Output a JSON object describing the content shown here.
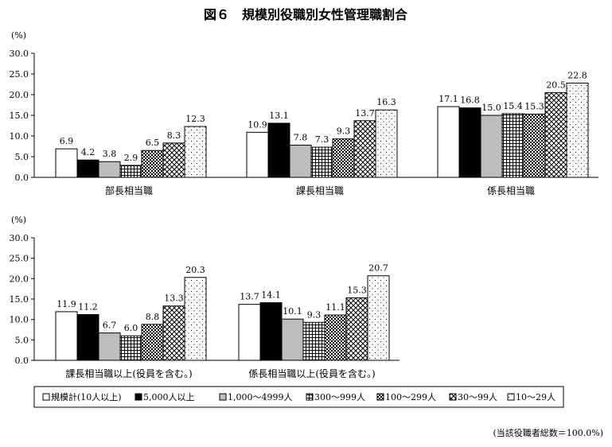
{
  "title": "図６　規模別役職別女性管理職割合",
  "unit_label": "(%)",
  "note": "(当該役職者総数＝100.0%)",
  "colors": {
    "s0": "#ffffff",
    "s1": "#000000",
    "s2": "#bdbdbd",
    "s3_pattern": "grid-fine",
    "s4_pattern": "check-dense",
    "s5_pattern": "diamond",
    "s6_pattern": "dots"
  },
  "chart_data": {
    "type": "bar",
    "ylim": [
      0,
      30
    ],
    "yticks": [
      "0.0",
      "5.0",
      "10.0",
      "15.0",
      "20.0",
      "25.0",
      "30.0"
    ],
    "legend": [
      "規模計(10人以上)",
      "5,000人以上",
      "1,000～4999人",
      "300～999人",
      "100～299人",
      "30～99人",
      "10～29人"
    ],
    "groups": [
      {
        "name": "部長相当職",
        "values": [
          6.9,
          4.2,
          3.8,
          2.9,
          6.5,
          8.3,
          12.3
        ],
        "labels": [
          "6.9",
          "4.2",
          "3.8",
          "2.9",
          "6.5",
          "8.3",
          "12.3"
        ]
      },
      {
        "name": "課長相当職",
        "values": [
          10.9,
          13.1,
          7.8,
          7.3,
          9.3,
          13.7,
          16.3
        ],
        "labels": [
          "10.9",
          "13.1",
          "7.8",
          "7.3",
          "9.3",
          "13.7",
          "16.3"
        ]
      },
      {
        "name": "係長相当職",
        "values": [
          17.1,
          16.8,
          15.0,
          15.4,
          15.3,
          20.5,
          22.8
        ],
        "labels": [
          "17.1",
          "16.8",
          "15.0",
          "15.4",
          "15.3",
          "20.5",
          "22.8"
        ]
      },
      {
        "name": "課長相当職以上(役員を含む。)",
        "values": [
          11.9,
          11.2,
          6.7,
          6.0,
          8.8,
          13.3,
          20.3
        ],
        "labels": [
          "11.9",
          "11.2",
          "6.7",
          "6.0",
          "8.8",
          "13.3",
          "20.3"
        ]
      },
      {
        "name": "係長相当職以上(役員を含む。)",
        "values": [
          13.7,
          14.1,
          10.1,
          9.3,
          11.1,
          15.3,
          20.7
        ],
        "labels": [
          "13.7",
          "14.1",
          "10.1",
          "9.3",
          "11.1",
          "15.3",
          "20.7"
        ]
      }
    ]
  }
}
